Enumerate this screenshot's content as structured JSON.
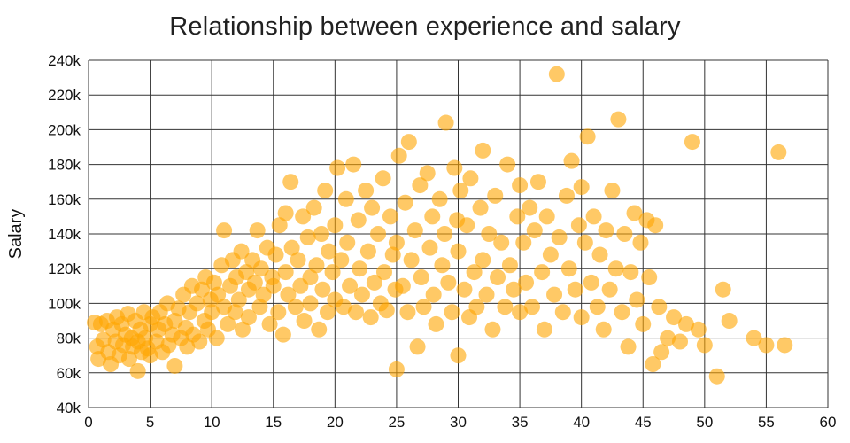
{
  "chart_data": {
    "type": "scatter",
    "title": "Relationship between experience and salary",
    "xlabel": "",
    "ylabel": "Salary",
    "xlim": [
      0,
      60
    ],
    "ylim": [
      40,
      240
    ],
    "xticks": [
      0,
      5,
      10,
      15,
      20,
      25,
      30,
      35,
      40,
      45,
      50,
      55,
      60
    ],
    "ytick_values": [
      40,
      60,
      80,
      100,
      120,
      140,
      160,
      180,
      200,
      220,
      240
    ],
    "ytick_labels": [
      "40k",
      "60k",
      "80k",
      "100k",
      "120k",
      "140k",
      "160k",
      "180k",
      "200k",
      "220k",
      "240k"
    ],
    "grid": true,
    "legend": false,
    "point_color": "#FFA500",
    "point_opacity": 0.6,
    "point_radius": 9,
    "grid_color": "#333333",
    "points": [
      [
        0.5,
        89
      ],
      [
        0.7,
        75
      ],
      [
        0.8,
        68
      ],
      [
        1,
        88
      ],
      [
        1.2,
        79
      ],
      [
        1.5,
        90
      ],
      [
        1.6,
        72
      ],
      [
        1.8,
        65
      ],
      [
        2,
        85
      ],
      [
        2.2,
        78
      ],
      [
        2.3,
        92
      ],
      [
        2.5,
        70
      ],
      [
        2.7,
        88
      ],
      [
        2.8,
        76
      ],
      [
        3,
        82
      ],
      [
        3.2,
        94
      ],
      [
        3.3,
        68
      ],
      [
        3.5,
        80
      ],
      [
        3.6,
        75
      ],
      [
        3.8,
        90
      ],
      [
        4,
        61
      ],
      [
        4,
        78
      ],
      [
        4.2,
        85
      ],
      [
        4.3,
        72
      ],
      [
        4.5,
        95
      ],
      [
        4.6,
        80
      ],
      [
        4.8,
        74
      ],
      [
        5,
        88
      ],
      [
        5,
        70
      ],
      [
        5.2,
        92
      ],
      [
        5.5,
        78
      ],
      [
        5.7,
        85
      ],
      [
        5.8,
        95
      ],
      [
        6,
        72
      ],
      [
        6.2,
        88
      ],
      [
        6.4,
        100
      ],
      [
        6.5,
        76
      ],
      [
        6.8,
        82
      ],
      [
        7,
        64
      ],
      [
        7,
        90
      ],
      [
        7.3,
        97
      ],
      [
        7.5,
        80
      ],
      [
        7.7,
        105
      ],
      [
        7.9,
        86
      ],
      [
        8,
        75
      ],
      [
        8.2,
        95
      ],
      [
        8.4,
        110
      ],
      [
        8.5,
        82
      ],
      [
        8.8,
        100
      ],
      [
        9,
        78
      ],
      [
        9.2,
        108
      ],
      [
        9.4,
        90
      ],
      [
        9.5,
        115
      ],
      [
        9.7,
        85
      ],
      [
        9.9,
        102
      ],
      [
        10,
        95
      ],
      [
        10.2,
        112
      ],
      [
        10.4,
        80
      ],
      [
        10.5,
        105
      ],
      [
        10.8,
        122
      ],
      [
        11,
        98
      ],
      [
        11,
        142
      ],
      [
        11.3,
        88
      ],
      [
        11.5,
        110
      ],
      [
        11.7,
        125
      ],
      [
        11.9,
        95
      ],
      [
        12,
        115
      ],
      [
        12.2,
        102
      ],
      [
        12.4,
        130
      ],
      [
        12.5,
        85
      ],
      [
        12.8,
        118
      ],
      [
        13,
        108
      ],
      [
        13,
        92
      ],
      [
        13.3,
        125
      ],
      [
        13.5,
        112
      ],
      [
        13.7,
        142
      ],
      [
        13.9,
        98
      ],
      [
        14,
        120
      ],
      [
        14.2,
        105
      ],
      [
        14.5,
        132
      ],
      [
        14.7,
        88
      ],
      [
        14.9,
        115
      ],
      [
        15,
        110
      ],
      [
        15.2,
        128
      ],
      [
        15.4,
        95
      ],
      [
        15.5,
        145
      ],
      [
        15.8,
        82
      ],
      [
        16,
        118
      ],
      [
        16,
        152
      ],
      [
        16.2,
        105
      ],
      [
        16.4,
        170
      ],
      [
        16.5,
        132
      ],
      [
        16.8,
        98
      ],
      [
        17,
        125
      ],
      [
        17.2,
        110
      ],
      [
        17.4,
        150
      ],
      [
        17.5,
        90
      ],
      [
        17.8,
        138
      ],
      [
        18,
        115
      ],
      [
        18,
        100
      ],
      [
        18.3,
        155
      ],
      [
        18.5,
        122
      ],
      [
        18.7,
        85
      ],
      [
        18.9,
        140
      ],
      [
        19,
        108
      ],
      [
        19.2,
        165
      ],
      [
        19.4,
        95
      ],
      [
        19.5,
        130
      ],
      [
        19.8,
        118
      ],
      [
        20,
        145
      ],
      [
        20,
        102
      ],
      [
        20.2,
        178
      ],
      [
        20.5,
        125
      ],
      [
        20.7,
        98
      ],
      [
        20.9,
        160
      ],
      [
        21,
        135
      ],
      [
        21.2,
        110
      ],
      [
        21.5,
        180
      ],
      [
        21.7,
        95
      ],
      [
        21.9,
        148
      ],
      [
        22,
        120
      ],
      [
        22.2,
        105
      ],
      [
        22.5,
        165
      ],
      [
        22.7,
        130
      ],
      [
        22.9,
        92
      ],
      [
        23,
        155
      ],
      [
        23.2,
        112
      ],
      [
        23.5,
        140
      ],
      [
        23.7,
        100
      ],
      [
        23.9,
        172
      ],
      [
        24,
        118
      ],
      [
        24.2,
        96
      ],
      [
        24.5,
        150
      ],
      [
        24.7,
        128
      ],
      [
        24.9,
        108
      ],
      [
        25,
        62
      ],
      [
        25,
        135
      ],
      [
        25.2,
        185
      ],
      [
        25.5,
        110
      ],
      [
        25.7,
        158
      ],
      [
        25.9,
        95
      ],
      [
        26,
        193
      ],
      [
        26.2,
        125
      ],
      [
        26.5,
        142
      ],
      [
        26.7,
        75
      ],
      [
        26.9,
        168
      ],
      [
        27,
        115
      ],
      [
        27.2,
        98
      ],
      [
        27.5,
        175
      ],
      [
        27.7,
        132
      ],
      [
        27.9,
        150
      ],
      [
        28,
        105
      ],
      [
        28.2,
        88
      ],
      [
        28.5,
        160
      ],
      [
        28.7,
        122
      ],
      [
        28.9,
        140
      ],
      [
        29,
        204
      ],
      [
        29.2,
        112
      ],
      [
        29.5,
        95
      ],
      [
        29.7,
        178
      ],
      [
        29.9,
        148
      ],
      [
        30,
        70
      ],
      [
        30,
        130
      ],
      [
        30.2,
        165
      ],
      [
        30.5,
        108
      ],
      [
        30.7,
        145
      ],
      [
        30.9,
        92
      ],
      [
        31,
        172
      ],
      [
        31.3,
        118
      ],
      [
        31.5,
        98
      ],
      [
        31.8,
        155
      ],
      [
        32,
        125
      ],
      [
        32,
        188
      ],
      [
        32.3,
        105
      ],
      [
        32.5,
        140
      ],
      [
        32.8,
        85
      ],
      [
        33,
        162
      ],
      [
        33.2,
        115
      ],
      [
        33.5,
        135
      ],
      [
        33.8,
        98
      ],
      [
        34,
        180
      ],
      [
        34.2,
        122
      ],
      [
        34.5,
        108
      ],
      [
        34.8,
        150
      ],
      [
        35,
        95
      ],
      [
        35,
        168
      ],
      [
        35.3,
        135
      ],
      [
        35.5,
        112
      ],
      [
        35.8,
        155
      ],
      [
        36,
        98
      ],
      [
        36.2,
        142
      ],
      [
        36.5,
        170
      ],
      [
        36.8,
        118
      ],
      [
        37,
        85
      ],
      [
        37.2,
        150
      ],
      [
        37.5,
        128
      ],
      [
        37.8,
        105
      ],
      [
        38,
        232
      ],
      [
        38.2,
        138
      ],
      [
        38.5,
        95
      ],
      [
        38.8,
        162
      ],
      [
        39,
        120
      ],
      [
        39.2,
        182
      ],
      [
        39.5,
        108
      ],
      [
        39.8,
        145
      ],
      [
        40,
        92
      ],
      [
        40,
        167
      ],
      [
        40.3,
        135
      ],
      [
        40.5,
        196
      ],
      [
        40.8,
        112
      ],
      [
        41,
        150
      ],
      [
        41.3,
        98
      ],
      [
        41.5,
        128
      ],
      [
        41.8,
        85
      ],
      [
        42,
        142
      ],
      [
        42.3,
        108
      ],
      [
        42.5,
        165
      ],
      [
        42.8,
        120
      ],
      [
        43,
        206
      ],
      [
        43.3,
        95
      ],
      [
        43.5,
        140
      ],
      [
        43.8,
        75
      ],
      [
        44,
        118
      ],
      [
        44.3,
        152
      ],
      [
        44.5,
        102
      ],
      [
        44.8,
        135
      ],
      [
        45,
        88
      ],
      [
        45.3,
        148
      ],
      [
        45.5,
        115
      ],
      [
        45.8,
        65
      ],
      [
        46,
        145
      ],
      [
        46.3,
        98
      ],
      [
        46.5,
        72
      ],
      [
        47,
        80
      ],
      [
        47.5,
        92
      ],
      [
        48,
        78
      ],
      [
        48.5,
        88
      ],
      [
        49,
        193
      ],
      [
        49.5,
        85
      ],
      [
        50,
        76
      ],
      [
        51,
        58
      ],
      [
        51.5,
        108
      ],
      [
        52,
        90
      ],
      [
        54,
        80
      ],
      [
        55,
        76
      ],
      [
        56,
        187
      ],
      [
        56.5,
        76
      ]
    ]
  }
}
